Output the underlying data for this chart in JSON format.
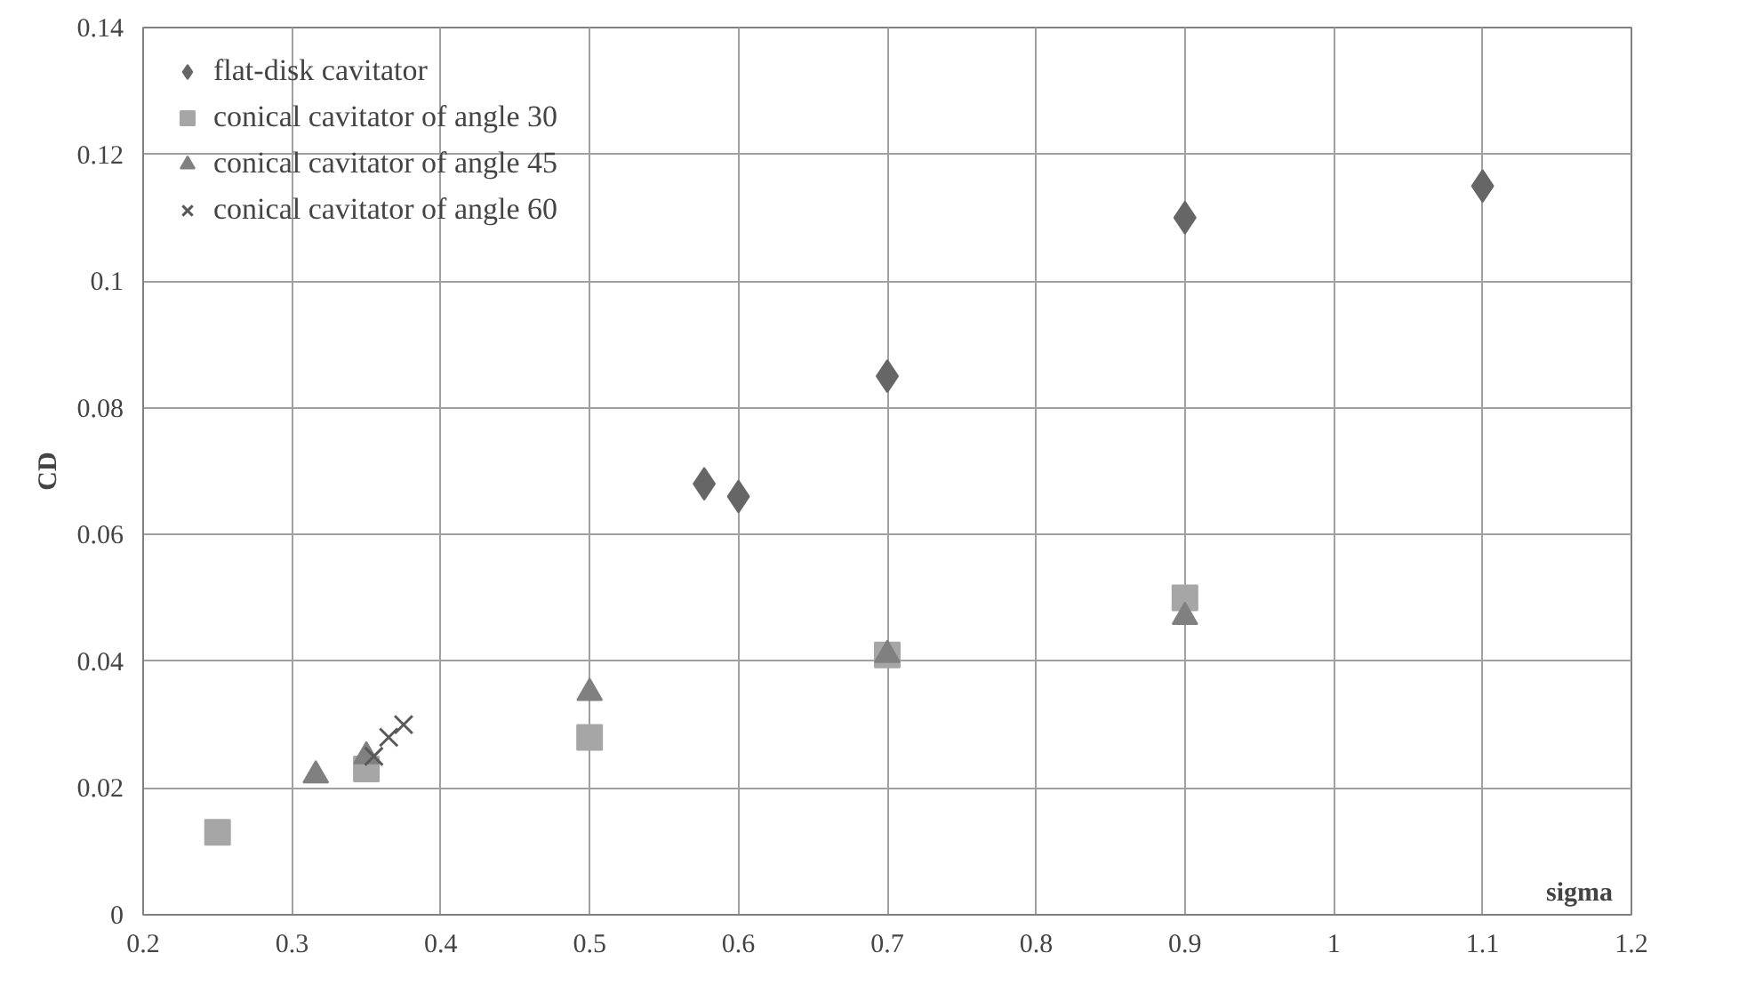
{
  "chart_data": {
    "type": "scatter",
    "xlabel": "sigma",
    "ylabel": "CD",
    "xlim": [
      0.2,
      1.2
    ],
    "xticks": [
      0.2,
      0.3,
      0.4,
      0.5,
      0.6,
      0.7,
      0.8,
      0.9,
      1,
      1.1,
      1.2
    ],
    "ylim": [
      0,
      0.14
    ],
    "yticks": [
      0,
      0.02,
      0.04,
      0.06,
      0.08,
      0.1,
      0.12,
      0.14
    ],
    "grid": true,
    "legend": "top left",
    "series": [
      {
        "name": "flat-disk cavitator",
        "color": "#666666",
        "marker": "diamond",
        "x": [
          0.577,
          0.6,
          0.7,
          0.9,
          1.1
        ],
        "values": [
          0.068,
          0.066,
          0.085,
          0.11,
          0.115
        ]
      },
      {
        "name": "conical cavitator of angle 30",
        "color": "#a6a6a6",
        "marker": "square",
        "x": [
          0.25,
          0.35,
          0.5,
          0.7,
          0.9
        ],
        "values": [
          0.013,
          0.023,
          0.028,
          0.041,
          0.05
        ]
      },
      {
        "name": "conical cavitator of angle 45",
        "color": "#808080",
        "marker": "triangle",
        "x": [
          0.316,
          0.35,
          0.5,
          0.7,
          0.9
        ],
        "values": [
          0.022,
          0.025,
          0.035,
          0.041,
          0.047
        ]
      },
      {
        "name": "conical cavitator of angle 60",
        "color": "#595959",
        "marker": "cross",
        "x": [
          0.355,
          0.365,
          0.375
        ],
        "values": [
          0.025,
          0.028,
          0.03
        ]
      }
    ]
  }
}
